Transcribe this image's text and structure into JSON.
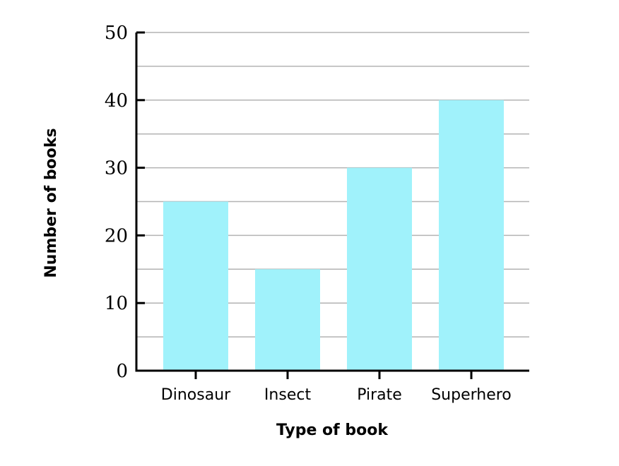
{
  "chart_data": {
    "type": "bar",
    "title": "",
    "xlabel": "Type of book",
    "ylabel": "Number of books",
    "categories": [
      "Dinosaur",
      "Insect",
      "Pirate",
      "Superhero"
    ],
    "values": [
      25,
      15,
      30,
      40
    ],
    "ylim": [
      0,
      50
    ],
    "y_ticks": [
      0,
      10,
      20,
      30,
      40,
      50
    ],
    "y_tick_labels": [
      "0",
      "10",
      "20",
      "30",
      "40",
      "50"
    ],
    "minor_grid_step": 5,
    "grid": true,
    "bar_color": "#a0f2fb"
  }
}
